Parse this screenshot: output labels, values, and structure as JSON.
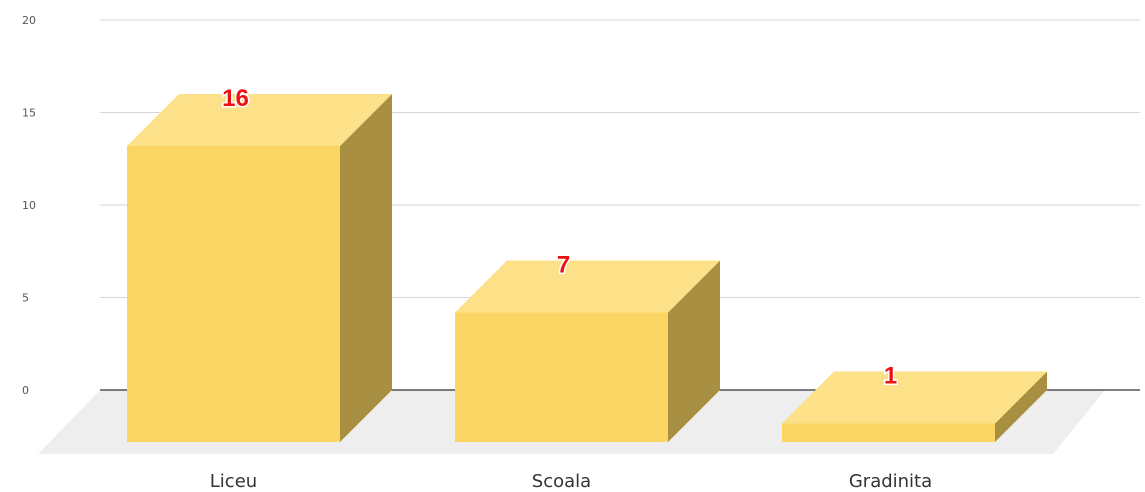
{
  "chart_data": {
    "type": "bar",
    "categories": [
      "Liceu",
      "Scoala",
      "Gradinita"
    ],
    "values": [
      16,
      7,
      1
    ],
    "data_labels": [
      "16",
      "7",
      "1"
    ],
    "title": "",
    "xlabel": "",
    "ylabel": "",
    "ylim": [
      0,
      20
    ],
    "yticks": [
      "0",
      "5",
      "10",
      "15",
      "20"
    ],
    "grid": true,
    "legend": "none",
    "style": "3d-column"
  },
  "colors": {
    "bar_front": "#fcd664",
    "bar_top": "#fde188",
    "bar_side": "#a88f41",
    "floor": "#eeeeee",
    "gridline": "#d6d6d6",
    "baseline": "#333333",
    "data_label": "#ee1111"
  }
}
